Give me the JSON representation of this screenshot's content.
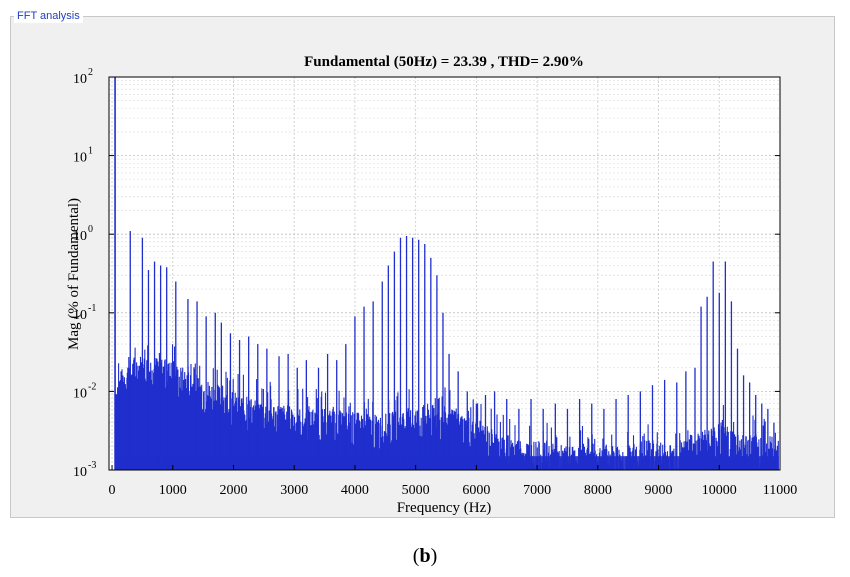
{
  "panel": {
    "label": "FFT analysis"
  },
  "caption": {
    "open": "(",
    "letter": "b",
    "close": ")"
  },
  "chart_data": {
    "type": "bar",
    "title": "Fundamental (50Hz) = 23.39 , THD= 2.90%",
    "xlabel": "Frequency (Hz)",
    "ylabel": "Mag (% of Fundamental)",
    "xlim": [
      -50,
      11000
    ],
    "ylim": [
      0.001,
      100
    ],
    "yscale": "log",
    "grid": true,
    "series_color": "#1f2ecc",
    "xticks": [
      "0",
      "1000",
      "2000",
      "3000",
      "4000",
      "5000",
      "6000",
      "7000",
      "8000",
      "9000",
      "10000",
      "11000"
    ],
    "ytick_exponents": [
      "2",
      "1",
      "0",
      "-1",
      "-2",
      "-3"
    ],
    "fundamental": {
      "x": 50,
      "y": 100
    },
    "peaks": {
      "x": [
        300,
        500,
        600,
        700,
        800,
        900,
        1050,
        1250,
        1400,
        1550,
        1700,
        1800,
        1950,
        2100,
        2250,
        2400,
        2550,
        2750,
        2900,
        3050,
        3200,
        3400,
        3550,
        3700,
        3850,
        4000,
        4150,
        4300,
        4450,
        4550,
        4650,
        4750,
        4850,
        4950,
        5050,
        5150,
        5250,
        5350,
        5450,
        5550,
        5700,
        5850,
        6000,
        6150,
        6300,
        6500,
        6700,
        6900,
        7100,
        7300,
        7500,
        7700,
        7900,
        8100,
        8300,
        8500,
        8700,
        8900,
        9100,
        9300,
        9450,
        9600,
        9700,
        9800,
        9900,
        10000,
        10100,
        10200,
        10300,
        10400,
        10500,
        10600,
        10700,
        10800,
        10900
      ],
      "y": [
        1.1,
        0.9,
        0.35,
        0.45,
        0.4,
        0.38,
        0.25,
        0.15,
        0.14,
        0.09,
        0.1,
        0.075,
        0.055,
        0.045,
        0.05,
        0.04,
        0.035,
        0.028,
        0.03,
        0.02,
        0.025,
        0.02,
        0.03,
        0.025,
        0.04,
        0.09,
        0.12,
        0.14,
        0.25,
        0.4,
        0.6,
        0.9,
        0.95,
        0.9,
        0.85,
        0.75,
        0.5,
        0.3,
        0.1,
        0.03,
        0.018,
        0.01,
        0.007,
        0.009,
        0.01,
        0.008,
        0.006,
        0.008,
        0.006,
        0.007,
        0.006,
        0.008,
        0.007,
        0.006,
        0.008,
        0.009,
        0.01,
        0.012,
        0.014,
        0.013,
        0.018,
        0.02,
        0.12,
        0.16,
        0.45,
        0.18,
        0.45,
        0.14,
        0.035,
        0.016,
        0.013,
        0.009,
        0.007,
        0.006,
        0.004
      ]
    },
    "noise_floor": {
      "x": [
        0,
        200,
        400,
        800,
        1200,
        1600,
        2000,
        2400,
        2800,
        3200,
        3600,
        4000,
        4400,
        4800,
        5200,
        5600,
        6000,
        6400,
        6800,
        7200,
        7600,
        8000,
        8400,
        8800,
        9200,
        9600,
        10000,
        10400,
        10800,
        11000
      ],
      "y": [
        0.012,
        0.022,
        0.03,
        0.028,
        0.02,
        0.014,
        0.01,
        0.008,
        0.007,
        0.006,
        0.006,
        0.0055,
        0.005,
        0.006,
        0.007,
        0.006,
        0.0045,
        0.003,
        0.0025,
        0.0022,
        0.002,
        0.0022,
        0.002,
        0.0025,
        0.0022,
        0.003,
        0.004,
        0.003,
        0.0028,
        0.0025
      ]
    }
  }
}
